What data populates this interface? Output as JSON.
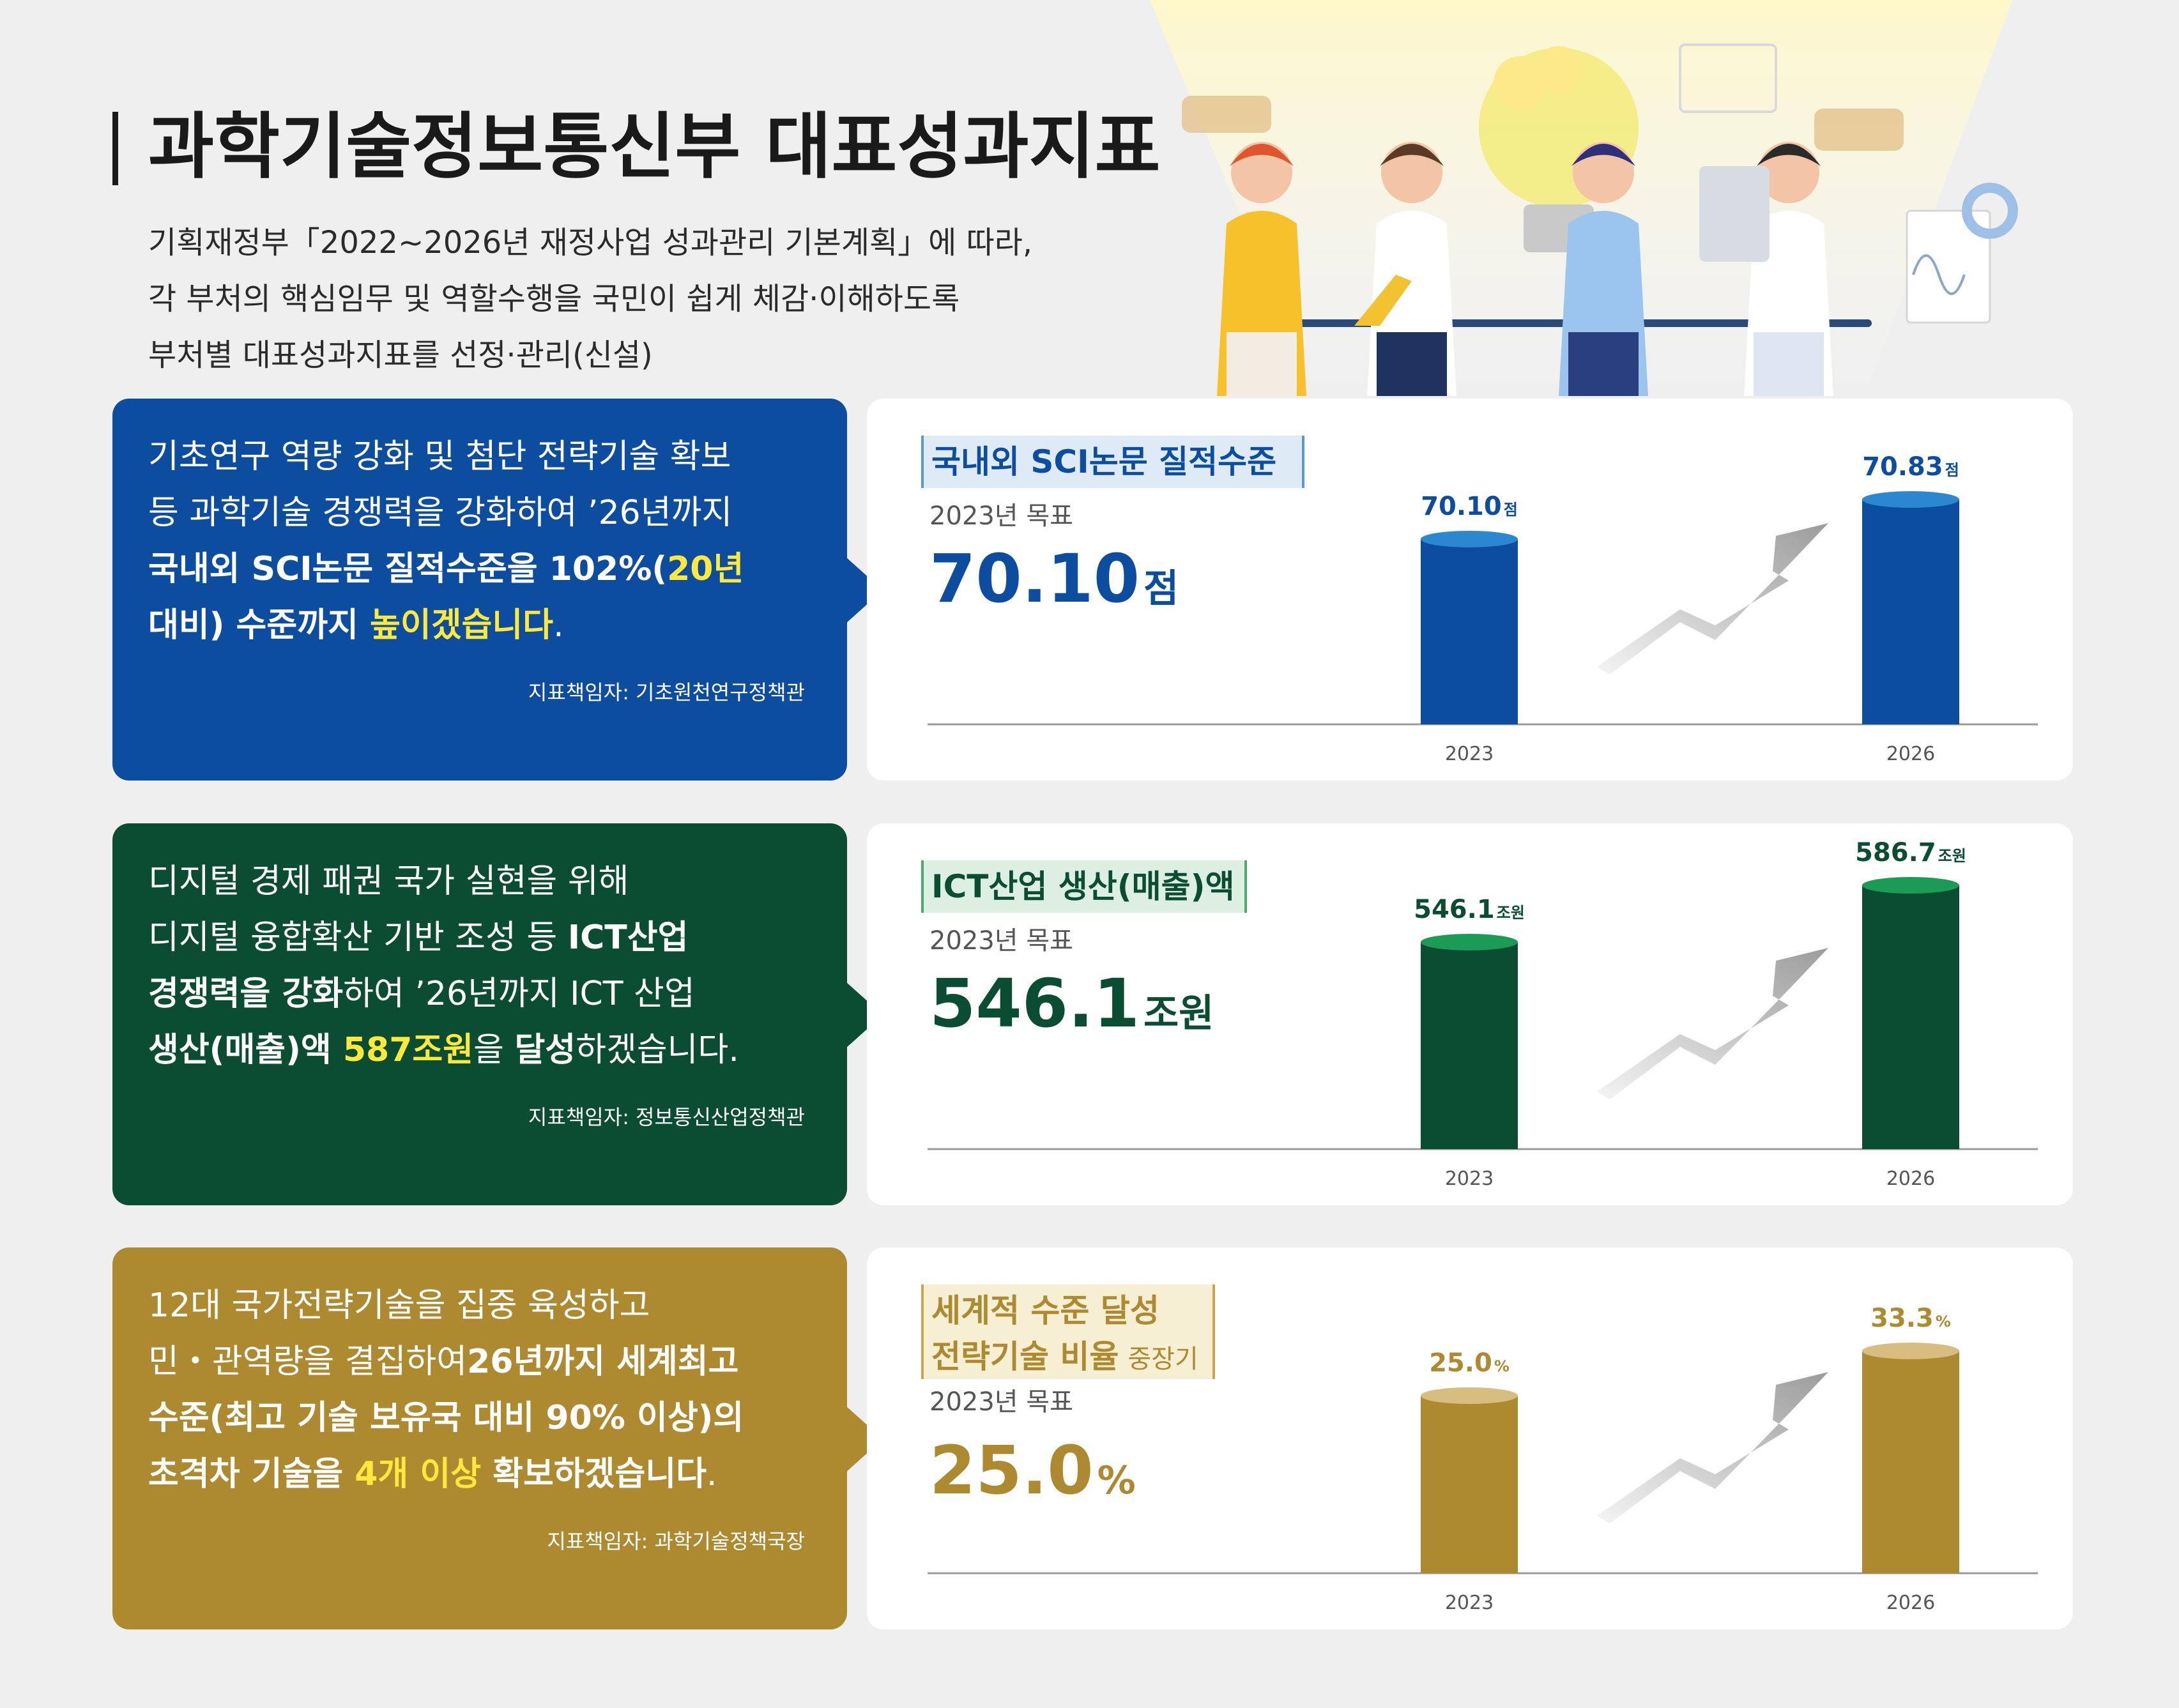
{
  "header": {
    "title": "과학기술정보통신부 대표성과지표",
    "intro": [
      "기획재정부「2022~2026년 재정사업 성과관리 기본계획」에 따라,",
      "각 부처의 핵심임무 및 역할수행을 국민이 쉽게 체감·이해하도록",
      "부처별 대표성과지표를 선정·관리(신설)"
    ]
  },
  "colors": {
    "background": "#efeff0",
    "blue": "#0d4d9f",
    "green": "#0a4d32",
    "gold": "#ad8a2f",
    "highlight": "#ffe93c",
    "card": "#ffffff"
  },
  "indicators": [
    {
      "lines": [
        [
          {
            "t": "기초연구 역량 강화 및 첨단 전략기술 확보",
            "w": "n"
          }
        ],
        [
          {
            "t": "등 과학기술 경쟁력을 강화하여 ’26년까지",
            "w": "n"
          }
        ],
        [
          {
            "t": "국내외 SCI논문 질적수준을 102%(",
            "w": "b"
          },
          {
            "t": "20년",
            "w": "h"
          }
        ],
        [
          {
            "t": "대비) 수준까지 ",
            "w": "b"
          },
          {
            "t": "높이겠습니다",
            "w": "h"
          },
          {
            "t": ".",
            "w": "n"
          }
        ]
      ],
      "manager": "지표책임자: 기초원천연구정책관",
      "chart_title": [
        "국내외 SCI논문 질적수준"
      ],
      "chart_title_suffix": "",
      "target_label": "2023년 목표",
      "target_value": "70.10",
      "target_unit": "점"
    },
    {
      "lines": [
        [
          {
            "t": "디지털 경제 패권 국가 실현을 위해",
            "w": "n"
          }
        ],
        [
          {
            "t": "디지털 융합확산 기반 조성 등 ",
            "w": "n"
          },
          {
            "t": "ICT산업",
            "w": "b"
          }
        ],
        [
          {
            "t": "경쟁력을 강화",
            "w": "b"
          },
          {
            "t": "하여 ’26년까지 ICT 산업",
            "w": "n"
          }
        ],
        [
          {
            "t": "생산(매출)액 ",
            "w": "b"
          },
          {
            "t": "587조원",
            "w": "h"
          },
          {
            "t": "을 ",
            "w": "n"
          },
          {
            "t": "달성",
            "w": "b"
          },
          {
            "t": "하겠습니다.",
            "w": "n"
          }
        ]
      ],
      "manager": "지표책임자: 정보통신산업정책관",
      "chart_title": [
        "ICT산업 생산(매출)액"
      ],
      "chart_title_suffix": "",
      "target_label": "2023년 목표",
      "target_value": "546.1",
      "target_unit": "조원"
    },
    {
      "lines": [
        [
          {
            "t": "12대 국가전략기술을 집중 육성하고",
            "w": "n"
          }
        ],
        [
          {
            "t": "민・관역량을 결집하여",
            "w": "n"
          },
          {
            "t": "26년까지 세계최고",
            "w": "b"
          }
        ],
        [
          {
            "t": "수준(최고 기술 보유국 대비 90% 이상)의",
            "w": "b"
          }
        ],
        [
          {
            "t": "초격차 기술을 ",
            "w": "b"
          },
          {
            "t": "4개 이상",
            "w": "h"
          },
          {
            "t": " 확보하겠습니다",
            "w": "b"
          },
          {
            "t": ".",
            "w": "n"
          }
        ]
      ],
      "manager": "지표책임자: 과학기술정책국장",
      "chart_title": [
        "세계적 수준 달성",
        "전략기술 비율"
      ],
      "chart_title_suffix": "중장기",
      "target_label": "2023년 목표",
      "target_value": "25.0",
      "target_unit": "%"
    }
  ],
  "chart_data": [
    {
      "type": "bar",
      "title": "국내외 SCI논문 질적수준",
      "categories": [
        "2023",
        "2026"
      ],
      "values": [
        70.1,
        70.83
      ],
      "value_labels": [
        "70.10",
        "70.83"
      ],
      "unit": "점",
      "color": "#0d4d9f",
      "grid": false
    },
    {
      "type": "bar",
      "title": "ICT산업 생산(매출)액",
      "categories": [
        "2023",
        "2026"
      ],
      "values": [
        546.1,
        586.7
      ],
      "value_labels": [
        "546.1",
        "586.7"
      ],
      "unit": "조원",
      "color": "#0a4d32",
      "grid": false
    },
    {
      "type": "bar",
      "title": "세계적 수준 달성 전략기술 비율 중장기",
      "categories": [
        "2023",
        "2026"
      ],
      "values": [
        25.0,
        33.3
      ],
      "value_labels": [
        "25.0",
        "33.3"
      ],
      "unit": "%",
      "color": "#ad8a2f",
      "grid": false
    }
  ]
}
